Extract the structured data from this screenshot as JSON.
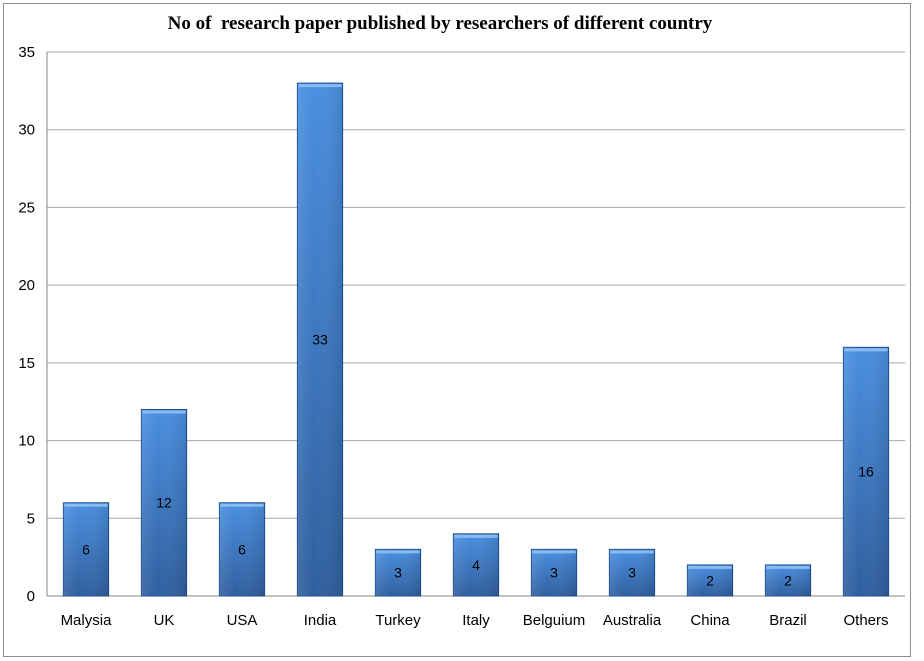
{
  "chart_data": {
    "type": "bar",
    "title": "No of  research paper published by researchers of different country",
    "xlabel": "",
    "ylabel": "",
    "categories": [
      "Malysia",
      "UK",
      "USA",
      "India",
      "Turkey",
      "Italy",
      "Belguium",
      "Australia",
      "China",
      "Brazil",
      "Others"
    ],
    "values": [
      6,
      12,
      6,
      33,
      3,
      4,
      3,
      3,
      2,
      2,
      16
    ],
    "ylim": [
      0,
      35
    ],
    "yticks": [
      0,
      5,
      10,
      15,
      20,
      25,
      30,
      35
    ],
    "grid": true,
    "legend": "none",
    "colors": {
      "bar_light": "#4a8fe0",
      "bar_dark": "#2f5f9e",
      "bar_edge": "#1f4f8f",
      "gridline": "#a6a6a6",
      "axis": "#868686"
    }
  }
}
